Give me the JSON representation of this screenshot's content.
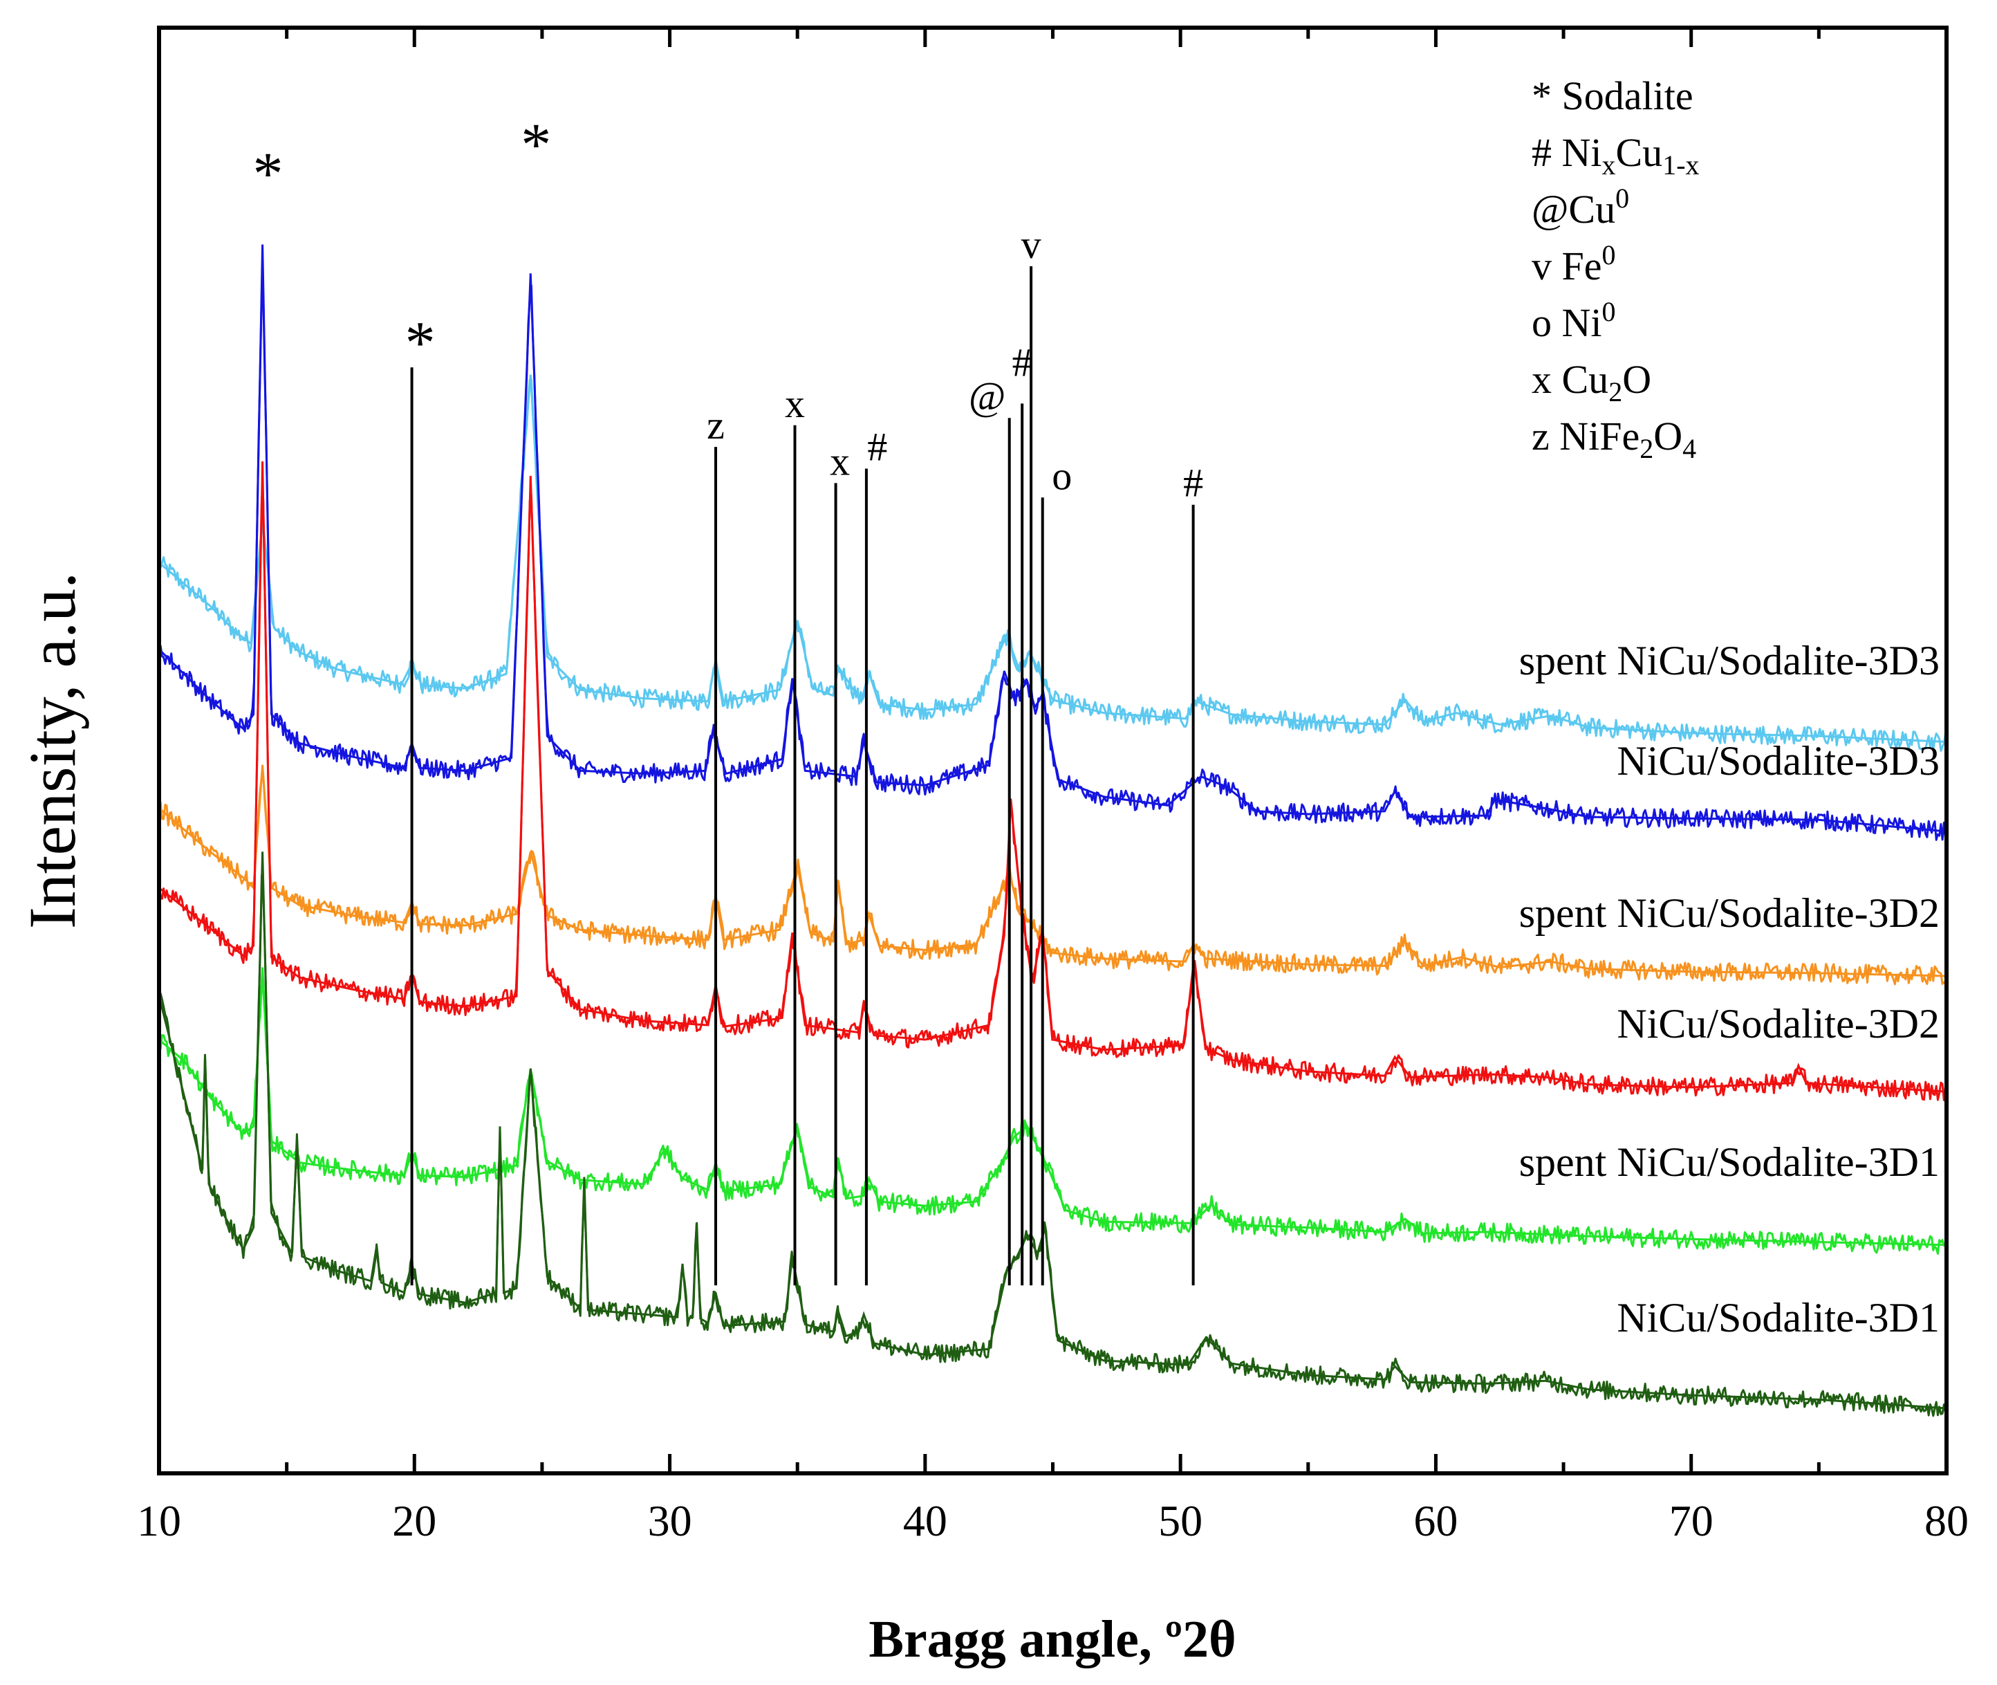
{
  "chart_data": {
    "type": "line",
    "title": "",
    "xlabel": "Bragg angle, º2θ",
    "ylabel": "Intensity, a.u.",
    "xlim": [
      10,
      80
    ],
    "ylim": [
      0,
      100
    ],
    "xticks": [
      10,
      20,
      30,
      40,
      50,
      60,
      70,
      80
    ],
    "y_tick_labels": false,
    "grid": false,
    "series": [
      {
        "name": "spent NiCu/Sodalite-3D3",
        "color": "#5bc8f0",
        "x": [
          10,
          12,
          13,
          13.6,
          14.05,
          14.5,
          15.5,
          17,
          19.5,
          19.9,
          20.3,
          22,
          23.6,
          24.55,
          25.2,
          26.5,
          29,
          31.5,
          31.8,
          32.1,
          34.3,
          35,
          35.6,
          36.4,
          36.6,
          37.5,
          37.8,
          38.2,
          40,
          42,
          43.2,
          43.7,
          44.1,
          45,
          47,
          50.2,
          50.6,
          52,
          55,
          58,
          58.8,
          59.5,
          60.8,
          62.5,
          64.5,
          66,
          70,
          75,
          80
        ],
        "values": [
          63,
          60,
          58.2,
          57.4,
          66,
          58.5,
          56.8,
          55.6,
          54.6,
          56,
          54.5,
          54.3,
          55.3,
          76,
          56.5,
          54.2,
          53.6,
          53.4,
          56.3,
          53.4,
          54.2,
          59,
          54.3,
          53.8,
          55.8,
          53.4,
          55.4,
          53.2,
          52.8,
          53.2,
          58,
          55.5,
          56.8,
          53.5,
          52.6,
          52.2,
          53.4,
          52.5,
          52,
          51.8,
          53.5,
          52,
          52.6,
          51.8,
          52.4,
          51.6,
          51.2,
          51,
          50.6
        ],
        "label": "spent NiCu/Sodalite-3D3"
      },
      {
        "name": "NiCu/Sodalite-3D3",
        "color": "#1515e0",
        "x": [
          10,
          12,
          13.3,
          13.7,
          14.05,
          14.4,
          15.5,
          17.5,
          19.6,
          19.9,
          20.2,
          22,
          23.8,
          24.55,
          25.2,
          26.5,
          29,
          31.4,
          31.7,
          32.2,
          34.4,
          34.8,
          35.3,
          37.3,
          37.6,
          38.1,
          40,
          42.5,
          43.1,
          43.5,
          44,
          44.3,
          44.6,
          45.2,
          47,
          49.5,
          50.8,
          51.8,
          53,
          55,
          58,
          58.4,
          59,
          62,
          62.3,
          64.3,
          66,
          70,
          75,
          80
        ],
        "values": [
          57,
          53.5,
          51.5,
          52.5,
          85,
          52.5,
          50.5,
          49.6,
          48.8,
          50.5,
          48.8,
          48.6,
          49.5,
          83,
          51,
          48.6,
          48.4,
          48.6,
          51.5,
          48.4,
          49.4,
          55,
          48.6,
          48.2,
          50.6,
          47.8,
          47.6,
          49,
          55.5,
          53.5,
          54.8,
          53,
          53.8,
          48,
          46.8,
          46.2,
          48.2,
          47.5,
          45.8,
          45.6,
          45.8,
          47.2,
          45.4,
          45.5,
          46.6,
          46,
          45.4,
          45.3,
          45.2,
          44.4
        ],
        "label": "NiCu/Sodalite-3D3"
      },
      {
        "name": "spent NiCu/Sodalite-3D2",
        "color": "#f7921e",
        "x": [
          10,
          12,
          13.3,
          13.7,
          14.05,
          14.4,
          15.5,
          17.5,
          19.6,
          19.9,
          20.2,
          22,
          24,
          24.55,
          25.2,
          26.5,
          29,
          31.5,
          31.8,
          32.1,
          34.3,
          35,
          35.5,
          36.4,
          36.6,
          36.9,
          37.6,
          37.8,
          38.2,
          40,
          42,
          43.3,
          43.7,
          44.1,
          45,
          47,
          50.2,
          50.5,
          51,
          55,
          58,
          58.8,
          59.5,
          61,
          62.5,
          64.5,
          66,
          70,
          75,
          80
        ],
        "values": [
          46,
          43,
          41.2,
          40.5,
          49,
          40.5,
          39.3,
          38.6,
          38.1,
          39.5,
          38,
          37.9,
          38.7,
          43,
          38.6,
          37.6,
          37.2,
          36.9,
          40,
          36.9,
          37.6,
          42,
          37.4,
          36.8,
          41,
          36.6,
          36.9,
          38.7,
          36.5,
          36.2,
          36.6,
          41.5,
          38.7,
          38.2,
          36,
          35.6,
          35.4,
          36.6,
          35.6,
          35.2,
          35.1,
          36.8,
          35.1,
          35.7,
          35,
          35.4,
          34.9,
          34.7,
          34.6,
          34.4
        ],
        "label": "spent NiCu/Sodalite-3D2"
      },
      {
        "name": "NiCu/Sodalite-3D2",
        "color": "#f01010",
        "x": [
          10,
          12,
          13.3,
          13.7,
          14.05,
          14.4,
          15.5,
          17.5,
          19.6,
          19.9,
          20.2,
          22,
          24,
          24.55,
          25.2,
          26.5,
          29,
          31.5,
          31.8,
          32.1,
          34.4,
          34.8,
          35.3,
          37.4,
          37.6,
          38,
          40,
          42.5,
          43.1,
          43.35,
          43.8,
          44.2,
          44.6,
          45,
          47,
          50.1,
          50.55,
          51,
          52,
          55,
          58,
          58.4,
          59,
          62.2,
          64.3,
          66,
          70,
          74,
          74.2,
          74.5,
          80
        ],
        "values": [
          40.5,
          37.7,
          35.8,
          36.5,
          70,
          35.7,
          34.3,
          33.5,
          32.8,
          34.6,
          32.6,
          32.3,
          33,
          69,
          34.8,
          32.1,
          31.3,
          31,
          33.8,
          30.9,
          31.5,
          37.4,
          31,
          30.5,
          32.3,
          30.3,
          30,
          31,
          37.2,
          46.5,
          38.6,
          34,
          37.6,
          30,
          29.3,
          29.6,
          35,
          29.4,
          28.6,
          27.8,
          27.5,
          28.8,
          27.4,
          27.6,
          27.4,
          26.9,
          26.7,
          27,
          28.2,
          27,
          26.4
        ],
        "label": "NiCu/Sodalite-3D2"
      },
      {
        "name": "spent NiCu/Sodalite-3D1",
        "color": "#22e52a",
        "x": [
          10,
          11,
          12,
          13.3,
          13.7,
          14.05,
          14.4,
          15.5,
          17.5,
          19.6,
          19.9,
          20.2,
          22,
          24,
          24.55,
          25.2,
          26.5,
          29,
          29.8,
          30.5,
          31.5,
          31.8,
          32.1,
          34.3,
          35,
          35.5,
          36.4,
          36.6,
          36.9,
          37.6,
          37.8,
          38.2,
          40,
          42,
          43,
          43.5,
          44,
          44.8,
          45.5,
          47,
          50.5,
          51.2,
          52,
          55,
          58,
          58.8,
          59.5,
          62,
          66,
          70,
          75,
          80
        ],
        "values": [
          30,
          28.5,
          26,
          23.5,
          24,
          35,
          23,
          21.5,
          21,
          20.6,
          22.2,
          20.6,
          20.5,
          21.3,
          28,
          21.6,
          20.3,
          20,
          22.4,
          20.4,
          19.6,
          21.5,
          19.5,
          20,
          24,
          19.8,
          19.1,
          21.8,
          19,
          19.2,
          20.4,
          18.8,
          18.5,
          18.8,
          21.5,
          23.3,
          24,
          21.2,
          18.2,
          17.4,
          17.3,
          18.6,
          17.2,
          17,
          16.7,
          17.6,
          16.6,
          16.7,
          16.4,
          16.2,
          16,
          15.8
        ],
        "label": "spent NiCu/Sodalite-3D1"
      },
      {
        "name": "NiCu/Sodalite-3D1",
        "color": "#1f5e12",
        "x": [
          10,
          11,
          11.7,
          11.8,
          11.95,
          12.5,
          13.3,
          13.7,
          14.05,
          14.4,
          15.2,
          15.4,
          15.6,
          17,
          18.3,
          18.5,
          18.7,
          19.6,
          19.9,
          20.2,
          22,
          23.2,
          23.35,
          23.5,
          24,
          24.55,
          25.2,
          26.5,
          26.65,
          26.8,
          29,
          30.3,
          30.5,
          30.7,
          30.9,
          31.05,
          31.2,
          31.5,
          31.8,
          32.1,
          34.5,
          34.8,
          35.3,
          36.4,
          36.6,
          36.9,
          37.4,
          37.6,
          38,
          40,
          42.5,
          43.2,
          43.6,
          44,
          44.4,
          44.7,
          45.2,
          47,
          50.3,
          51,
          52,
          55,
          58,
          58.4,
          59,
          62,
          64.3,
          66,
          70,
          75,
          80
        ],
        "values": [
          33,
          26,
          21,
          29,
          20,
          18,
          15.5,
          17,
          43,
          18,
          15.2,
          23,
          15,
          14,
          13.3,
          15.5,
          13.2,
          12.5,
          14.5,
          12.4,
          11.8,
          12.5,
          24,
          12.5,
          12.8,
          28,
          13.6,
          11.4,
          20.5,
          11.3,
          11,
          10.8,
          14.5,
          10.7,
          10.8,
          17.3,
          10.7,
          10.4,
          12.5,
          10.2,
          10.5,
          15,
          10.3,
          9.8,
          11.2,
          9.5,
          9.8,
          11,
          9,
          8.2,
          8.6,
          14,
          15,
          16.5,
          15.2,
          17,
          9.2,
          7.8,
          7.5,
          9.4,
          7.6,
          6.8,
          6.5,
          7.4,
          6.3,
          6.2,
          6.4,
          5.8,
          5.4,
          5.1,
          4.5
        ],
        "label": "NiCu/Sodalite-3D1"
      }
    ],
    "reference_lines": [
      {
        "x": 19.9,
        "top": 76.5,
        "symbol": "*"
      },
      {
        "x": 31.8,
        "top": 71,
        "symbol": "z"
      },
      {
        "x": 34.9,
        "top": 72.5,
        "symbol": "x"
      },
      {
        "x": 36.5,
        "top": 68.5,
        "symbol": "x"
      },
      {
        "x": 37.7,
        "top": 69.5,
        "symbol": "#"
      },
      {
        "x": 43.3,
        "top": 73,
        "symbol": "@"
      },
      {
        "x": 43.8,
        "top": 74,
        "symbol": "#"
      },
      {
        "x": 44.15,
        "top": 83.5,
        "symbol": "v"
      },
      {
        "x": 44.6,
        "top": 67.5,
        "symbol": "o"
      },
      {
        "x": 50.5,
        "top": 67,
        "symbol": "#"
      }
    ],
    "peak_markers": [
      {
        "x": 14.05,
        "y": 88.5,
        "symbol": "*"
      },
      {
        "x": 24.55,
        "y": 90.5,
        "symbol": "*"
      }
    ],
    "legend": {
      "placement": "top-right",
      "entries": [
        {
          "symbol": "*",
          "name": "Sodalite"
        },
        {
          "symbol": "#",
          "name": "NixCu1-x"
        },
        {
          "symbol": "@",
          "name": "Cu0"
        },
        {
          "symbol": "v",
          "name": "Fe0"
        },
        {
          "symbol": "o",
          "name": "Ni0"
        },
        {
          "symbol": "x",
          "name": "Cu2O"
        },
        {
          "symbol": "z",
          "name": "NiFe2O4"
        }
      ]
    }
  }
}
